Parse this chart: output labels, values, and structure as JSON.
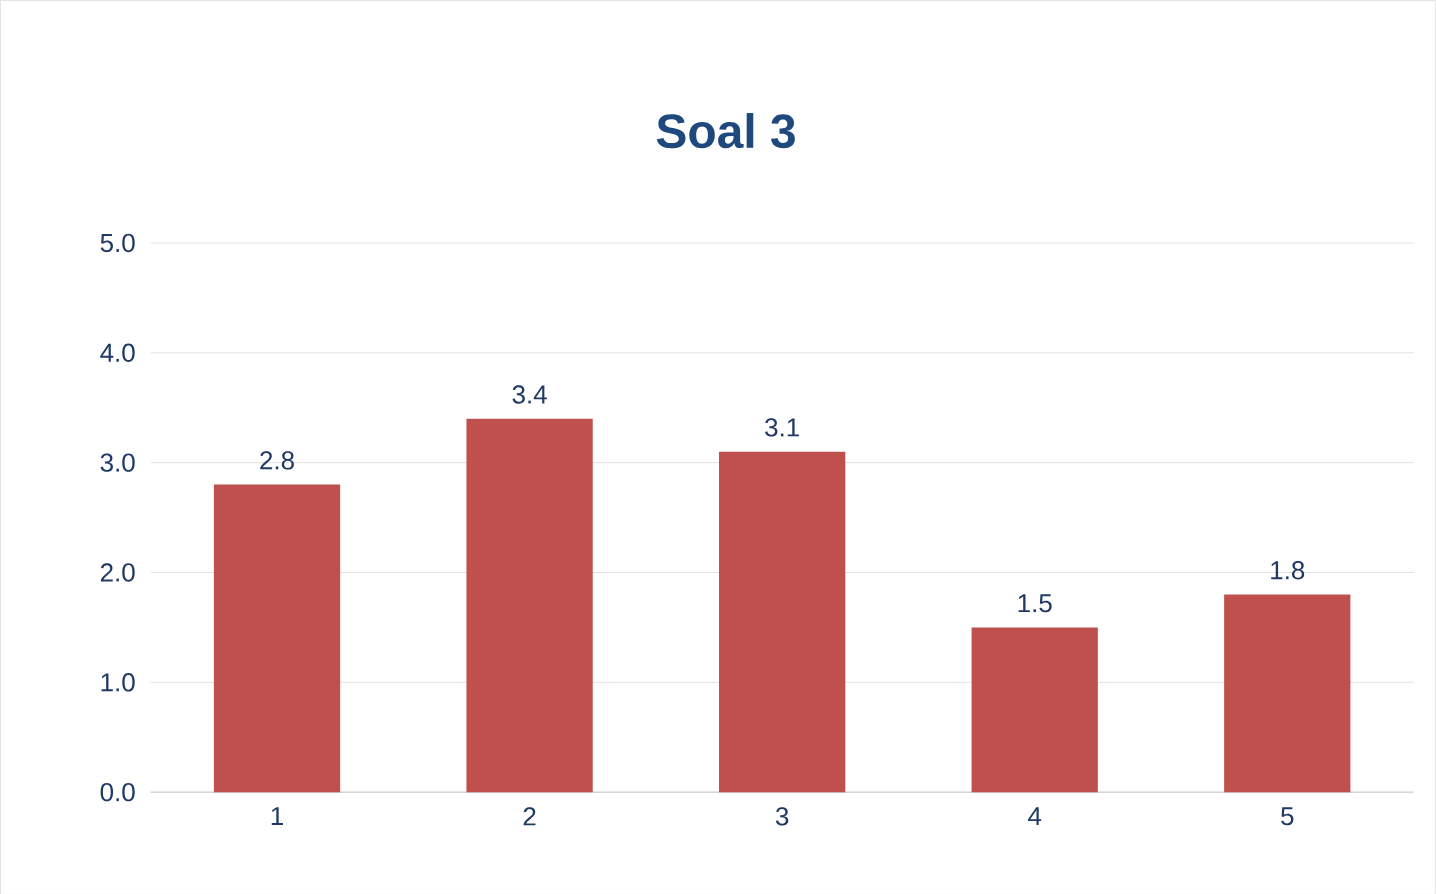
{
  "chart_data": {
    "type": "bar",
    "title": "Soal 3",
    "categories": [
      "1",
      "2",
      "3",
      "4",
      "5"
    ],
    "values": [
      2.8,
      3.4,
      3.1,
      1.5,
      1.8
    ],
    "color": "#c0504d",
    "ylim": [
      0,
      5
    ],
    "yticks": [
      {
        "value": 0,
        "label": "0.0"
      },
      {
        "value": 1,
        "label": "1.0"
      },
      {
        "value": 2,
        "label": "2.0"
      },
      {
        "value": 3,
        "label": "3.0"
      },
      {
        "value": 4,
        "label": "4.0"
      },
      {
        "value": 5,
        "label": "5.0"
      }
    ],
    "grid": "y",
    "data_labels": true
  }
}
